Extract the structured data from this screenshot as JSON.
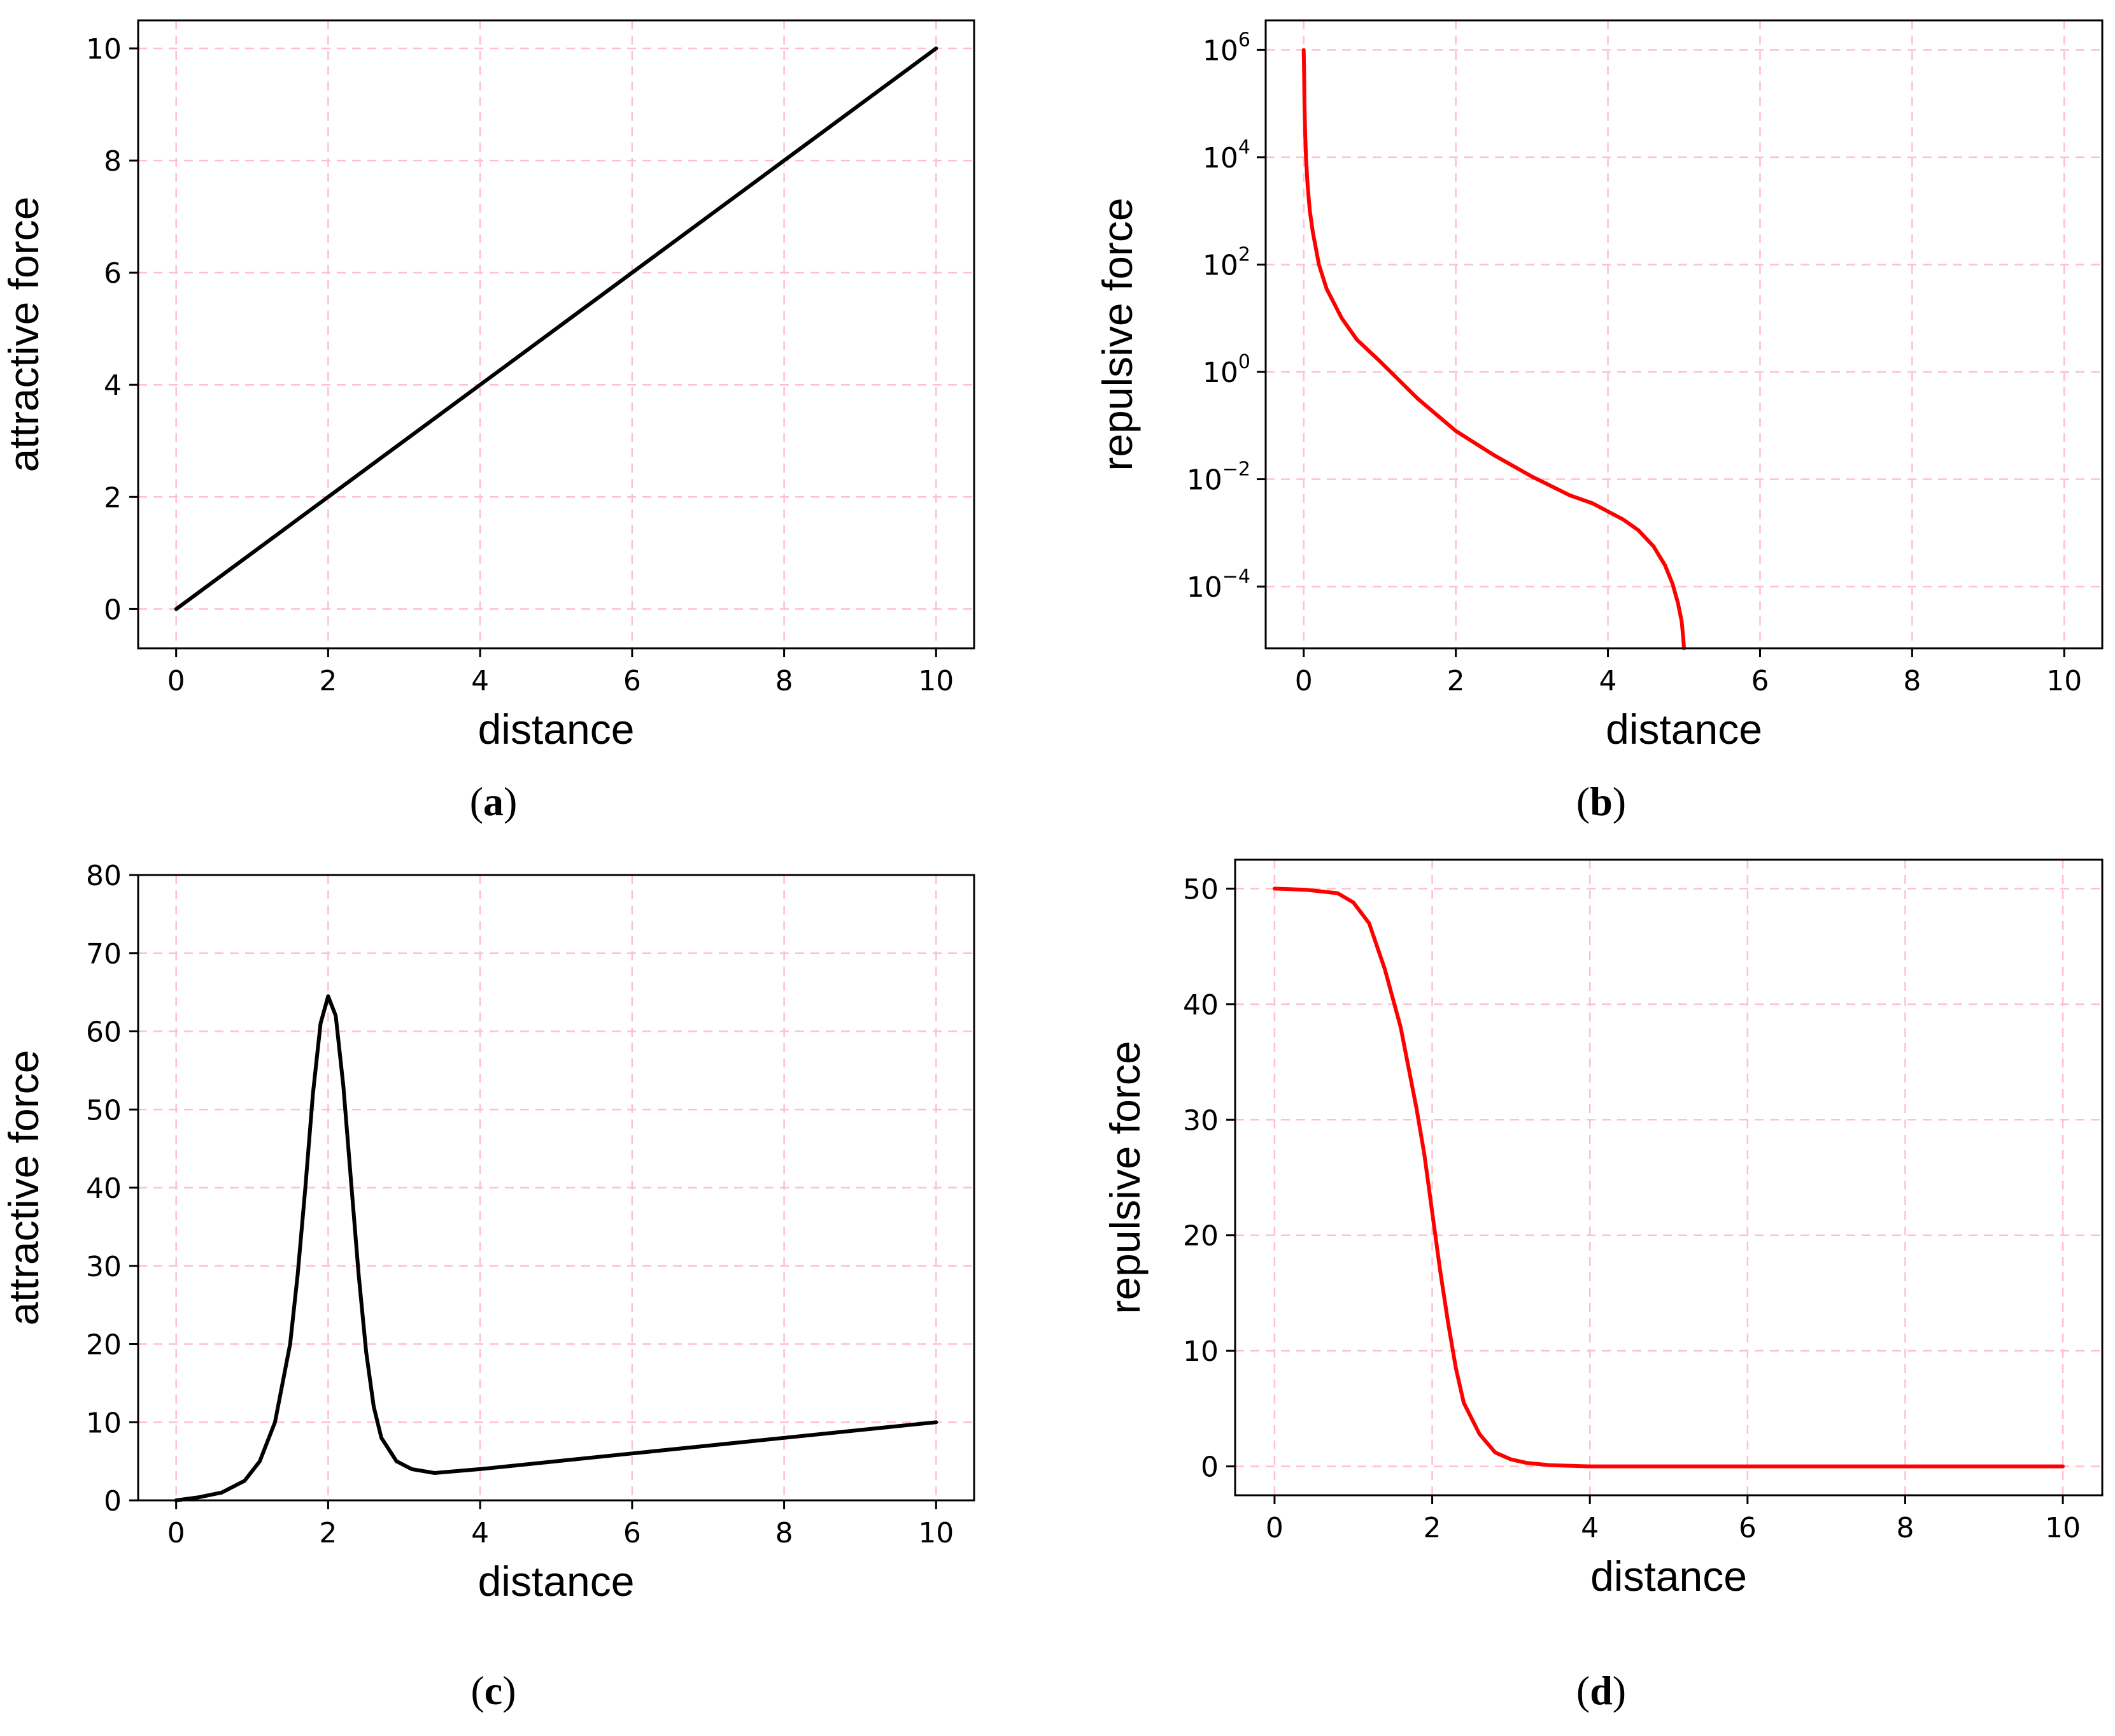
{
  "chart_data": [
    {
      "id": "a",
      "type": "line",
      "caption_letter": "a",
      "xlabel": "distance",
      "ylabel": "attractive force",
      "xlim": [
        -0.5,
        10.5
      ],
      "ylim": [
        -0.7,
        10.5
      ],
      "yscale": "linear",
      "xticks": [
        0,
        2,
        4,
        6,
        8,
        10
      ],
      "xtick_labels": [
        "0",
        "2",
        "4",
        "6",
        "8",
        "10"
      ],
      "yticks": [
        0,
        2,
        4,
        6,
        8,
        10
      ],
      "ytick_labels": [
        "0",
        "2",
        "4",
        "6",
        "8",
        "10"
      ],
      "grid": true,
      "line_color": "#000000",
      "series": [
        {
          "name": "attractive force",
          "x": [
            0,
            10
          ],
          "y": [
            0,
            10
          ]
        }
      ]
    },
    {
      "id": "b",
      "type": "line",
      "caption_letter": "b",
      "xlabel": "distance",
      "ylabel": "repulsive force",
      "xlim": [
        -0.5,
        10.5
      ],
      "ylim_exp": [
        -5.15,
        6.55
      ],
      "yscale": "log",
      "xticks": [
        0,
        2,
        4,
        6,
        8,
        10
      ],
      "xtick_labels": [
        "0",
        "2",
        "4",
        "6",
        "8",
        "10"
      ],
      "yticks_exp": [
        6,
        4,
        2,
        0,
        -2,
        -4
      ],
      "ytick_base": "10",
      "ytick_exponents": [
        "6",
        "4",
        "2",
        "0",
        "−2",
        "−4"
      ],
      "grid": true,
      "line_color": "#ff0000",
      "series": [
        {
          "name": "repulsive force",
          "x": [
            0.0,
            0.005,
            0.01,
            0.02,
            0.03,
            0.05,
            0.08,
            0.12,
            0.2,
            0.3,
            0.5,
            0.7,
            1.0,
            1.5,
            2.0,
            2.5,
            3.0,
            3.5,
            3.8,
            4.0,
            4.2,
            4.4,
            4.6,
            4.75,
            4.85,
            4.92,
            4.97,
            4.99,
            5.0
          ],
          "log10_y": [
            6.0,
            5.6,
            5.0,
            4.4,
            4.0,
            3.5,
            3.0,
            2.6,
            2.0,
            1.55,
            1.0,
            0.6,
            0.2,
            -0.5,
            -1.1,
            -1.55,
            -1.95,
            -2.3,
            -2.45,
            -2.6,
            -2.75,
            -2.95,
            -3.25,
            -3.6,
            -3.95,
            -4.3,
            -4.65,
            -4.95,
            -5.15
          ]
        }
      ]
    },
    {
      "id": "c",
      "type": "line",
      "caption_letter": "c",
      "xlabel": "distance",
      "ylabel": "attractive force",
      "xlim": [
        -0.5,
        10.5
      ],
      "ylim": [
        0,
        80
      ],
      "yscale": "linear",
      "xticks": [
        0,
        2,
        4,
        6,
        8,
        10
      ],
      "xtick_labels": [
        "0",
        "2",
        "4",
        "6",
        "8",
        "10"
      ],
      "yticks": [
        0,
        10,
        20,
        30,
        40,
        50,
        60,
        70,
        80
      ],
      "ytick_labels": [
        "0",
        "10",
        "20",
        "30",
        "40",
        "50",
        "60",
        "70",
        "80"
      ],
      "grid": true,
      "line_color": "#000000",
      "series": [
        {
          "name": "attractive force",
          "x": [
            0.0,
            0.3,
            0.6,
            0.9,
            1.1,
            1.3,
            1.5,
            1.6,
            1.7,
            1.8,
            1.9,
            2.0,
            2.1,
            2.2,
            2.3,
            2.4,
            2.5,
            2.6,
            2.7,
            2.9,
            3.1,
            3.4,
            4.0,
            5.0,
            6.0,
            7.0,
            8.0,
            9.0,
            10.0
          ],
          "y": [
            0.0,
            0.4,
            1.0,
            2.5,
            5.0,
            10.0,
            20.0,
            29.0,
            40.0,
            52.0,
            61.0,
            64.5,
            62.0,
            53.0,
            41.0,
            29.0,
            19.0,
            12.0,
            8.0,
            5.0,
            4.0,
            3.5,
            4.0,
            5.0,
            6.0,
            7.0,
            8.0,
            9.0,
            10.0
          ]
        }
      ]
    },
    {
      "id": "d",
      "type": "line",
      "caption_letter": "d",
      "xlabel": "distance",
      "ylabel": "repulsive force",
      "xlim": [
        -0.5,
        10.5
      ],
      "ylim": [
        -2.5,
        52.5
      ],
      "yscale": "linear",
      "xticks": [
        0,
        2,
        4,
        6,
        8,
        10
      ],
      "xtick_labels": [
        "0",
        "2",
        "4",
        "6",
        "8",
        "10"
      ],
      "yticks": [
        0,
        10,
        20,
        30,
        40,
        50
      ],
      "ytick_labels": [
        "0",
        "10",
        "20",
        "30",
        "40",
        "50"
      ],
      "grid": true,
      "line_color": "#ff0000",
      "series": [
        {
          "name": "repulsive force",
          "x": [
            0.0,
            0.4,
            0.8,
            1.0,
            1.2,
            1.4,
            1.6,
            1.8,
            1.9,
            2.0,
            2.1,
            2.2,
            2.3,
            2.4,
            2.6,
            2.8,
            3.0,
            3.2,
            3.5,
            4.0,
            5.0,
            6.0,
            7.0,
            8.0,
            9.0,
            10.0
          ],
          "y": [
            50.0,
            49.9,
            49.6,
            48.8,
            47.0,
            43.0,
            38.0,
            31.0,
            27.0,
            22.0,
            17.0,
            12.5,
            8.5,
            5.5,
            2.8,
            1.2,
            0.6,
            0.3,
            0.1,
            0.0,
            0.0,
            0.0,
            0.0,
            0.0,
            0.0,
            0.0
          ]
        }
      ]
    }
  ]
}
